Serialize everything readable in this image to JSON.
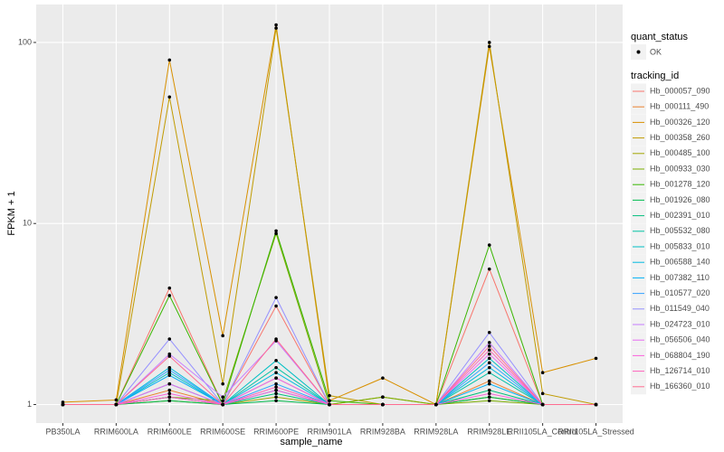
{
  "chart_data": {
    "type": "line",
    "log_y": true,
    "grid": true,
    "x_label": "sample_name",
    "y_label": "FPKM + 1",
    "categories": [
      "PB350LA",
      "RRIM600LA",
      "RRIM600LE",
      "RRIM600SE",
      "RRIM600PE",
      "RRIM901LA",
      "RRIM928BA",
      "RRIM928LA",
      "RRIM928LE",
      "RRII105LA_Control",
      "RRII105LA_Stressed"
    ],
    "ylim": [
      0.79,
      162
    ],
    "yticks": [
      1,
      10,
      100
    ],
    "point_legend": {
      "title": "quant_status",
      "label": "OK"
    },
    "legend_title": "tracking_id",
    "legend_position": "right",
    "series": [
      {
        "name": "Hb_000057_090",
        "color": "#F8766D",
        "values": [
          1,
          1,
          4.4,
          1,
          3.5,
          1,
          1,
          1,
          5.6,
          1,
          1
        ]
      },
      {
        "name": "Hb_000111_490",
        "color": "#EA8331",
        "values": [
          1,
          1,
          1.2,
          1,
          1.4,
          1,
          1,
          1,
          1.35,
          1,
          1
        ]
      },
      {
        "name": "Hb_000326_120",
        "color": "#D89000",
        "values": [
          1.03,
          1.06,
          80,
          2.4,
          125,
          1.05,
          1.4,
          1,
          95,
          1.5,
          1.8
        ]
      },
      {
        "name": "Hb_000358_260",
        "color": "#C09B00",
        "values": [
          1,
          1,
          50,
          1.3,
          120,
          1.12,
          1,
          1,
          100,
          1.15,
          1
        ]
      },
      {
        "name": "Hb_000485_100",
        "color": "#A3A500",
        "values": [
          1,
          1,
          1.05,
          1,
          1.1,
          1,
          1.1,
          1,
          1.1,
          1,
          1
        ]
      },
      {
        "name": "Hb_000933_030",
        "color": "#7CAE00",
        "values": [
          1,
          1,
          1.1,
          1.05,
          8.8,
          1,
          1.1,
          1,
          1.05,
          1,
          1
        ]
      },
      {
        "name": "Hb_001278_120",
        "color": "#39B600",
        "values": [
          1,
          1,
          4,
          1,
          9.1,
          1.05,
          1,
          1,
          7.6,
          1,
          1
        ]
      },
      {
        "name": "Hb_001926_080",
        "color": "#00BB4E",
        "values": [
          1,
          1,
          1.05,
          1,
          1.05,
          1,
          1,
          1,
          1.1,
          1,
          1
        ]
      },
      {
        "name": "Hb_002391_010",
        "color": "#00BF7D",
        "values": [
          1,
          1,
          1.1,
          1,
          1.15,
          1,
          1,
          1,
          1.2,
          1,
          1
        ]
      },
      {
        "name": "Hb_005532_080",
        "color": "#00C1A3",
        "values": [
          1,
          1,
          1.3,
          1,
          1.6,
          1,
          1,
          1,
          1.5,
          1,
          1
        ]
      },
      {
        "name": "Hb_005833_010",
        "color": "#00BFC4",
        "values": [
          1,
          1,
          1.5,
          1,
          1.75,
          1,
          1,
          1,
          1.8,
          1,
          1
        ]
      },
      {
        "name": "Hb_006588_140",
        "color": "#00BAE0",
        "values": [
          1,
          1,
          1.6,
          1,
          1.5,
          1,
          1,
          1,
          1.6,
          1,
          1
        ]
      },
      {
        "name": "Hb_007382_110",
        "color": "#00B0F6",
        "values": [
          1,
          1,
          1.45,
          1,
          1.2,
          1,
          1,
          1,
          1.3,
          1,
          1
        ]
      },
      {
        "name": "Hb_010577_020",
        "color": "#35A2FF",
        "values": [
          1,
          1,
          1.55,
          1,
          1.3,
          1,
          1,
          1,
          1.7,
          1,
          1
        ]
      },
      {
        "name": "Hb_011549_040",
        "color": "#9590FF",
        "values": [
          1,
          1,
          2.3,
          1,
          3.9,
          1,
          1,
          1,
          2.5,
          1,
          1
        ]
      },
      {
        "name": "Hb_024723_010",
        "color": "#C77CFF",
        "values": [
          1,
          1,
          1.9,
          1.1,
          2.25,
          1,
          1,
          1,
          2.2,
          1,
          1
        ]
      },
      {
        "name": "Hb_056506_040",
        "color": "#E76BF3",
        "values": [
          1,
          1,
          1.3,
          1,
          1.4,
          1,
          1,
          1,
          1.9,
          1,
          1
        ]
      },
      {
        "name": "Hb_068804_190",
        "color": "#FA62DB",
        "values": [
          1,
          1,
          1.15,
          1,
          1.2,
          1,
          1,
          1,
          1.15,
          1,
          1
        ]
      },
      {
        "name": "Hb_126714_010",
        "color": "#FF62BC",
        "values": [
          1,
          1,
          1.1,
          1,
          1.25,
          1,
          1,
          1,
          2,
          1,
          1
        ]
      },
      {
        "name": "Hb_166360_010",
        "color": "#FF6C91",
        "values": [
          1,
          1,
          1.85,
          1,
          2.3,
          1,
          1,
          1,
          2.1,
          1,
          1
        ]
      }
    ]
  }
}
